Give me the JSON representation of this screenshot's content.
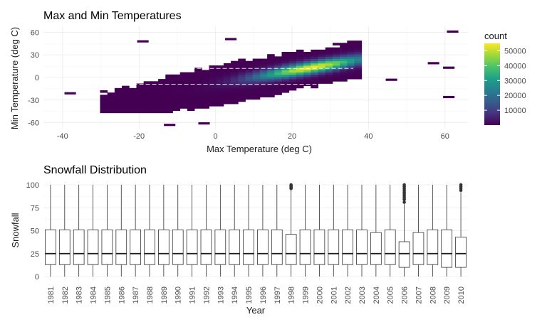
{
  "chart_data": [
    {
      "type": "heatmap",
      "title": "Max and Min Temperatures",
      "xlabel": "Max Temperature (deg C)",
      "ylabel": "Min Temperature (deg C)",
      "xlim": [
        -45,
        66
      ],
      "ylim": [
        -68,
        68
      ],
      "x_ticks": [
        -40,
        -20,
        0,
        20,
        40,
        60
      ],
      "y_ticks": [
        -60,
        -30,
        0,
        30,
        60
      ],
      "grid": true,
      "legend": {
        "title": "count",
        "placement": "right",
        "colormap": "viridis",
        "range": [
          0,
          55000
        ],
        "ticks": [
          10000,
          20000,
          30000,
          40000,
          50000
        ],
        "tick_labels": [
          "10000",
          "20000",
          "30000",
          "40000",
          "50000"
        ]
      },
      "colors": [
        "#440154",
        "#46327e",
        "#365c8d",
        "#277f8e",
        "#1fa187",
        "#4ac16d",
        "#a0da39",
        "#fde725"
      ],
      "bins": [
        {
          "x": 62,
          "y": 61,
          "count": 20
        },
        {
          "x": 4,
          "y": 51,
          "count": 40
        },
        {
          "x": -19,
          "y": 48,
          "count": 30
        },
        {
          "x": 57,
          "y": 19,
          "count": 30
        },
        {
          "x": 61,
          "y": 13,
          "count": 30
        },
        {
          "x": 46,
          "y": -3,
          "count": 40
        },
        {
          "x": 61,
          "y": -26,
          "count": 30
        },
        {
          "x": -38,
          "y": -21,
          "count": 40
        },
        {
          "x": -3,
          "y": -61,
          "count": 30
        },
        {
          "x": -12,
          "y": -63,
          "count": 30
        }
      ]
    },
    {
      "type": "box",
      "title": "Snowfall Distribution",
      "xlabel": "Year",
      "ylabel": "Snowfall",
      "ylim": [
        0,
        100
      ],
      "y_ticks": [
        0,
        25,
        50,
        75,
        100
      ],
      "grid": true,
      "categories": [
        "1981",
        "1982",
        "1983",
        "1984",
        "1985",
        "1986",
        "1987",
        "1988",
        "1989",
        "1990",
        "1991",
        "1992",
        "1993",
        "1994",
        "1995",
        "1996",
        "1997",
        "1998",
        "1999",
        "2000",
        "2001",
        "2002",
        "2003",
        "2004",
        "2005",
        "2006",
        "2007",
        "2008",
        "2009",
        "2010"
      ],
      "boxes": [
        {
          "min": 0,
          "q1": 13,
          "median": 25,
          "q3": 51,
          "max": 100
        },
        {
          "min": 0,
          "q1": 13,
          "median": 25,
          "q3": 51,
          "max": 100
        },
        {
          "min": 0,
          "q1": 13,
          "median": 25,
          "q3": 51,
          "max": 100
        },
        {
          "min": 0,
          "q1": 13,
          "median": 25,
          "q3": 51,
          "max": 100
        },
        {
          "min": 0,
          "q1": 13,
          "median": 25,
          "q3": 51,
          "max": 100
        },
        {
          "min": 0,
          "q1": 13,
          "median": 25,
          "q3": 51,
          "max": 100
        },
        {
          "min": 0,
          "q1": 13,
          "median": 25,
          "q3": 51,
          "max": 100
        },
        {
          "min": 0,
          "q1": 13,
          "median": 25,
          "q3": 51,
          "max": 100
        },
        {
          "min": 0,
          "q1": 13,
          "median": 25,
          "q3": 51,
          "max": 100
        },
        {
          "min": 0,
          "q1": 13,
          "median": 25,
          "q3": 51,
          "max": 100
        },
        {
          "min": 0,
          "q1": 13,
          "median": 25,
          "q3": 51,
          "max": 100
        },
        {
          "min": 0,
          "q1": 13,
          "median": 25,
          "q3": 51,
          "max": 100
        },
        {
          "min": 0,
          "q1": 13,
          "median": 25,
          "q3": 51,
          "max": 100
        },
        {
          "min": 0,
          "q1": 13,
          "median": 25,
          "q3": 51,
          "max": 100
        },
        {
          "min": 0,
          "q1": 13,
          "median": 25,
          "q3": 51,
          "max": 100
        },
        {
          "min": 0,
          "q1": 13,
          "median": 25,
          "q3": 51,
          "max": 100
        },
        {
          "min": 0,
          "q1": 13,
          "median": 25,
          "q3": 51,
          "max": 100
        },
        {
          "min": 0,
          "q1": 13,
          "median": 25,
          "q3": 46,
          "max": 95,
          "outliers": [
            96,
            97,
            98,
            99,
            100
          ]
        },
        {
          "min": 0,
          "q1": 13,
          "median": 25,
          "q3": 51,
          "max": 100
        },
        {
          "min": 0,
          "q1": 13,
          "median": 25,
          "q3": 51,
          "max": 100
        },
        {
          "min": 0,
          "q1": 13,
          "median": 25,
          "q3": 51,
          "max": 100
        },
        {
          "min": 0,
          "q1": 13,
          "median": 25,
          "q3": 51,
          "max": 100
        },
        {
          "min": 0,
          "q1": 13,
          "median": 25,
          "q3": 51,
          "max": 100
        },
        {
          "min": 0,
          "q1": 13,
          "median": 25,
          "q3": 48,
          "max": 100
        },
        {
          "min": 0,
          "q1": 13,
          "median": 25,
          "q3": 51,
          "max": 100
        },
        {
          "min": 0,
          "q1": 10,
          "median": 25,
          "q3": 38,
          "max": 79,
          "outliers": [
            81,
            84,
            86,
            88,
            90,
            92,
            94,
            96,
            98,
            100
          ]
        },
        {
          "min": 0,
          "q1": 13,
          "median": 25,
          "q3": 48,
          "max": 100
        },
        {
          "min": 0,
          "q1": 13,
          "median": 25,
          "q3": 51,
          "max": 100
        },
        {
          "min": 0,
          "q1": 10,
          "median": 25,
          "q3": 51,
          "max": 100
        },
        {
          "min": 0,
          "q1": 10,
          "median": 25,
          "q3": 43,
          "max": 92,
          "outliers": [
            94,
            96,
            98,
            100
          ]
        }
      ]
    }
  ]
}
